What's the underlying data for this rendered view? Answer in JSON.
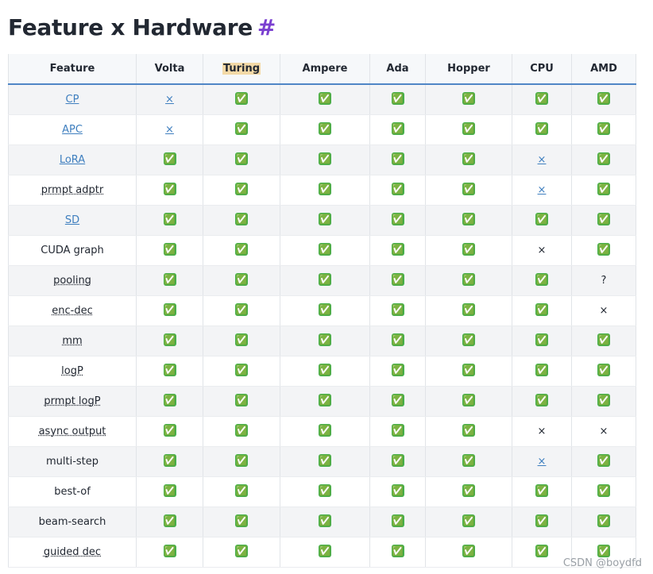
{
  "header": {
    "title": "Feature x Hardware",
    "anchor": "#"
  },
  "table": {
    "columns": [
      "Feature",
      "Volta",
      "Turing",
      "Ampere",
      "Ada",
      "Hopper",
      "CPU",
      "AMD"
    ],
    "rows": [
      [
        "CP",
        "×",
        "✅",
        "✅",
        "✅",
        "✅",
        "✅",
        "✅"
      ],
      [
        "APC",
        "×",
        "✅",
        "✅",
        "✅",
        "✅",
        "✅",
        "✅"
      ],
      [
        "LoRA",
        "✅",
        "✅",
        "✅",
        "✅",
        "✅",
        "×",
        "✅"
      ],
      [
        "prmpt adptr",
        "✅",
        "✅",
        "✅",
        "✅",
        "✅",
        "×",
        "✅"
      ],
      [
        "SD",
        "✅",
        "✅",
        "✅",
        "✅",
        "✅",
        "✅",
        "✅"
      ],
      [
        "CUDA graph",
        "✅",
        "✅",
        "✅",
        "✅",
        "✅",
        "×",
        "✅"
      ],
      [
        "pooling",
        "✅",
        "✅",
        "✅",
        "✅",
        "✅",
        "✅",
        "?"
      ],
      [
        "enc-dec",
        "✅",
        "✅",
        "✅",
        "✅",
        "✅",
        "✅",
        "×"
      ],
      [
        "mm",
        "✅",
        "✅",
        "✅",
        "✅",
        "✅",
        "✅",
        "✅"
      ],
      [
        "logP",
        "✅",
        "✅",
        "✅",
        "✅",
        "✅",
        "✅",
        "✅"
      ],
      [
        "prmpt logP",
        "✅",
        "✅",
        "✅",
        "✅",
        "✅",
        "✅",
        "✅"
      ],
      [
        "async output",
        "✅",
        "✅",
        "✅",
        "✅",
        "✅",
        "×",
        "×"
      ],
      [
        "multi-step",
        "✅",
        "✅",
        "✅",
        "✅",
        "✅",
        "×",
        "✅"
      ],
      [
        "best-of",
        "✅",
        "✅",
        "✅",
        "✅",
        "✅",
        "✅",
        "✅"
      ],
      [
        "beam-search",
        "✅",
        "✅",
        "✅",
        "✅",
        "✅",
        "✅",
        "✅"
      ],
      [
        "guided dec",
        "✅",
        "✅",
        "✅",
        "✅",
        "✅",
        "✅",
        "✅"
      ]
    ]
  },
  "watermark": "CSDN @boydfd"
}
